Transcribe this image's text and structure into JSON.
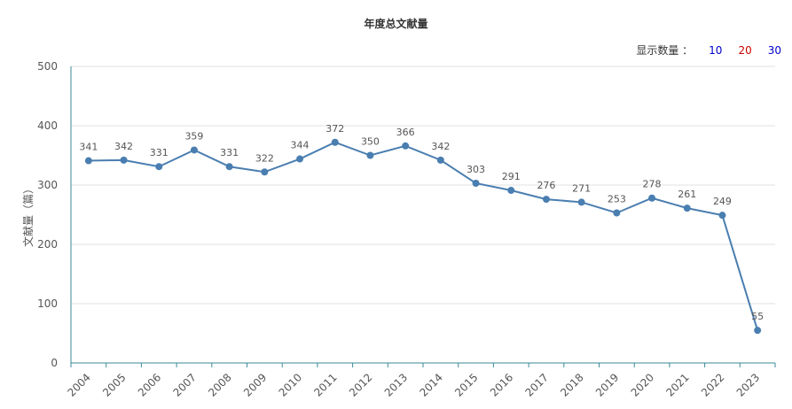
{
  "chart_data": {
    "type": "line",
    "title": "年度总文献量",
    "xlabel": "",
    "ylabel": "文献量（篇）",
    "ylim": [
      0,
      500
    ],
    "yticks": [
      0,
      100,
      200,
      300,
      400,
      500
    ],
    "grid": true,
    "categories": [
      "2004",
      "2005",
      "2006",
      "2007",
      "2008",
      "2009",
      "2010",
      "2011",
      "2012",
      "2013",
      "2014",
      "2015",
      "2016",
      "2017",
      "2018",
      "2019",
      "2020",
      "2021",
      "2022",
      "2023"
    ],
    "series": [
      {
        "values": [
          341,
          342,
          331,
          359,
          331,
          322,
          344,
          372,
          350,
          366,
          342,
          303,
          291,
          276,
          271,
          253,
          278,
          261,
          249,
          55
        ]
      }
    ]
  },
  "controls": {
    "label": "显示数量 ：",
    "options": [
      "10",
      "20",
      "30"
    ]
  },
  "colors": {
    "line": "#4a7eb0",
    "opt_10": "#0000cc",
    "opt_20": "#cc0000",
    "opt_30": "#0000cc"
  }
}
